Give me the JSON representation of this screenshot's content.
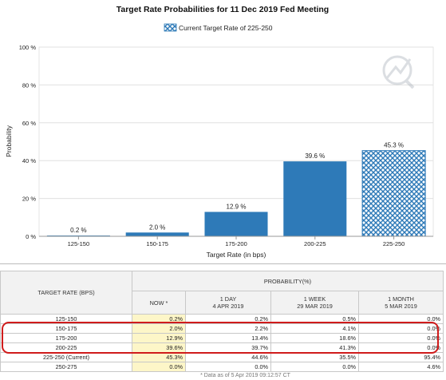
{
  "chart_data": {
    "type": "bar",
    "title": "Target Rate Probabilities for 11 Dec 2019 Fed Meeting",
    "legend": {
      "label": "Current Target Rate of 225-250",
      "placement": "top-center"
    },
    "categories": [
      "125-150",
      "150-175",
      "175-200",
      "200-225",
      "225-250"
    ],
    "values": [
      0.2,
      2.0,
      12.9,
      39.6,
      45.3
    ],
    "value_labels": [
      "0.2 %",
      "2.0 %",
      "12.9 %",
      "39.6 %",
      "45.3 %"
    ],
    "current_category": "225-250",
    "xlabel": "Target Rate (in bps)",
    "ylabel": "Probability",
    "ylim": [
      0,
      100
    ],
    "yticks": [
      0,
      20,
      40,
      60,
      80,
      100
    ],
    "ytick_labels": [
      "0 %",
      "20 %",
      "40 %",
      "60 %",
      "80 %",
      "100 %"
    ],
    "grid": true,
    "colors": {
      "bar": "#2e7ab8",
      "current_pattern": "#2e7ab8",
      "grid": "#e0e0e0"
    }
  },
  "table": {
    "header_rate": "TARGET RATE (BPS)",
    "header_prob": "PROBABILITY(%)",
    "columns": [
      {
        "line1": "NOW *",
        "line2": ""
      },
      {
        "line1": "1 DAY",
        "line2": "4 APR 2019"
      },
      {
        "line1": "1 WEEK",
        "line2": "29 MAR 2019"
      },
      {
        "line1": "1 MONTH",
        "line2": "5 MAR 2019"
      }
    ],
    "rows": [
      {
        "rate": "125-150",
        "now": "0.2%",
        "day": "0.2%",
        "week": "0.5%",
        "month": "0.0%"
      },
      {
        "rate": "150-175",
        "now": "2.0%",
        "day": "2.2%",
        "week": "4.1%",
        "month": "0.0%"
      },
      {
        "rate": "175-200",
        "now": "12.9%",
        "day": "13.4%",
        "week": "18.6%",
        "month": "0.0%"
      },
      {
        "rate": "200-225",
        "now": "39.6%",
        "day": "39.7%",
        "week": "41.3%",
        "month": "0.0%"
      },
      {
        "rate": "225-250 (Current)",
        "now": "45.3%",
        "day": "44.6%",
        "week": "35.5%",
        "month": "95.4%"
      },
      {
        "rate": "250-275",
        "now": "0.0%",
        "day": "0.0%",
        "week": "0.0%",
        "month": "4.6%"
      }
    ],
    "footnote": "* Data as of 5 Apr 2019 09:12:57 CT",
    "highlight_color": "#d01c1c"
  },
  "icons": {
    "watermark": "quikstrike-logo"
  }
}
